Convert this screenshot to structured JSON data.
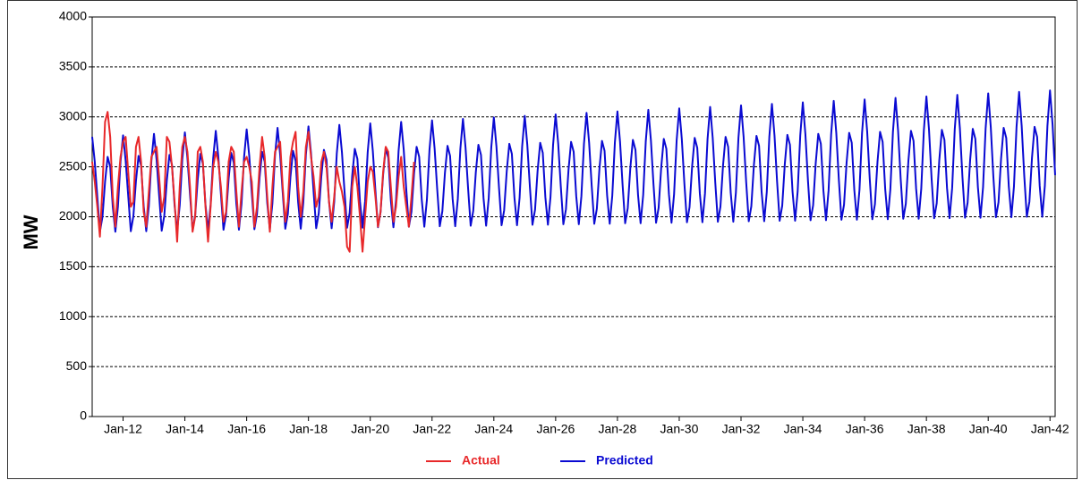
{
  "chart_data": {
    "type": "line",
    "ylabel": "MW",
    "ylim": [
      0,
      4000
    ],
    "yticks": [
      0,
      500,
      1000,
      1500,
      2000,
      2500,
      3000,
      3500,
      4000
    ],
    "grid": true,
    "legend": "bottom",
    "xlim": [
      "Jan-11",
      "Mar-42"
    ],
    "xticks": [
      "Jan-12",
      "Jan-14",
      "Jan-16",
      "Jan-18",
      "Jan-20",
      "Jan-22",
      "Jan-24",
      "Jan-26",
      "Jan-28",
      "Jan-30",
      "Jan-32",
      "Jan-34",
      "Jan-36",
      "Jan-38",
      "Jan-40",
      "Jan-42"
    ],
    "x": [
      "Jan-11",
      "Feb-11",
      "Mar-11",
      "Apr-11",
      "May-11",
      "Jun-11",
      "Jul-11",
      "Aug-11",
      "Sep-11",
      "Oct-11",
      "Nov-11",
      "Dec-11",
      "Jan-12",
      "Feb-12",
      "Mar-12",
      "Apr-12",
      "May-12",
      "Jun-12",
      "Jul-12",
      "Aug-12",
      "Sep-12",
      "Oct-12",
      "Nov-12",
      "Dec-12",
      "Jan-13",
      "Feb-13",
      "Mar-13",
      "Apr-13",
      "May-13",
      "Jun-13",
      "Jul-13",
      "Aug-13",
      "Sep-13",
      "Oct-13",
      "Nov-13",
      "Dec-13",
      "Jan-14",
      "Feb-14",
      "Mar-14",
      "Apr-14",
      "May-14",
      "Jun-14",
      "Jul-14",
      "Aug-14",
      "Sep-14",
      "Oct-14",
      "Nov-14",
      "Dec-14",
      "Jan-15",
      "Feb-15",
      "Mar-15",
      "Apr-15",
      "May-15",
      "Jun-15",
      "Jul-15",
      "Aug-15",
      "Sep-15",
      "Oct-15",
      "Nov-15",
      "Dec-15",
      "Jan-16",
      "Feb-16",
      "Mar-16",
      "Apr-16",
      "May-16",
      "Jun-16",
      "Jul-16",
      "Aug-16",
      "Sep-16",
      "Oct-16",
      "Nov-16",
      "Dec-16",
      "Jan-17",
      "Feb-17",
      "Mar-17",
      "Apr-17",
      "May-17",
      "Jun-17",
      "Jul-17",
      "Aug-17",
      "Sep-17",
      "Oct-17",
      "Nov-17",
      "Dec-17",
      "Jan-18",
      "Feb-18",
      "Mar-18",
      "Apr-18",
      "May-18",
      "Jun-18",
      "Jul-18",
      "Aug-18",
      "Sep-18",
      "Oct-18",
      "Nov-18",
      "Dec-18",
      "Jan-19",
      "Feb-19",
      "Mar-19",
      "Apr-19",
      "May-19",
      "Jun-19",
      "Jul-19",
      "Aug-19",
      "Sep-19",
      "Oct-19",
      "Nov-19",
      "Dec-19",
      "Jan-20",
      "Feb-20",
      "Mar-20",
      "Apr-20",
      "May-20",
      "Jun-20",
      "Jul-20",
      "Aug-20",
      "Sep-20",
      "Oct-20",
      "Nov-20",
      "Dec-20",
      "Jan-21",
      "Feb-21",
      "Mar-21",
      "Apr-21",
      "May-21",
      "Jun-21",
      "Jul-21",
      "Aug-21",
      "Sep-21",
      "Oct-21",
      "Nov-21",
      "Dec-21",
      "Jan-22",
      "Feb-22",
      "Mar-22",
      "Apr-22",
      "May-22",
      "Jun-22",
      "Jul-22",
      "Aug-22",
      "Sep-22",
      "Oct-22",
      "Nov-22",
      "Dec-22",
      "Jan-23",
      "Feb-23",
      "Mar-23",
      "Apr-23",
      "May-23",
      "Jun-23",
      "Jul-23",
      "Aug-23",
      "Sep-23",
      "Oct-23",
      "Nov-23",
      "Dec-23",
      "Jan-24",
      "Feb-24",
      "Mar-24",
      "Apr-24",
      "May-24",
      "Jun-24",
      "Jul-24",
      "Aug-24",
      "Sep-24",
      "Oct-24",
      "Nov-24",
      "Dec-24",
      "Jan-25",
      "Feb-25",
      "Mar-25",
      "Apr-25",
      "May-25",
      "Jun-25",
      "Jul-25",
      "Aug-25",
      "Sep-25",
      "Oct-25",
      "Nov-25",
      "Dec-25",
      "Jan-26",
      "Feb-26",
      "Mar-26",
      "Apr-26",
      "May-26",
      "Jun-26",
      "Jul-26",
      "Aug-26",
      "Sep-26",
      "Oct-26",
      "Nov-26",
      "Dec-26",
      "Jan-27",
      "Feb-27",
      "Mar-27",
      "Apr-27",
      "May-27",
      "Jun-27",
      "Jul-27",
      "Aug-27",
      "Sep-27",
      "Oct-27",
      "Nov-27",
      "Dec-27",
      "Jan-28",
      "Feb-28",
      "Mar-28",
      "Apr-28",
      "May-28",
      "Jun-28",
      "Jul-28",
      "Aug-28",
      "Sep-28",
      "Oct-28",
      "Nov-28",
      "Dec-28",
      "Jan-29",
      "Feb-29",
      "Mar-29",
      "Apr-29",
      "May-29",
      "Jun-29",
      "Jul-29",
      "Aug-29",
      "Sep-29",
      "Oct-29",
      "Nov-29",
      "Dec-29",
      "Jan-30",
      "Feb-30",
      "Mar-30",
      "Apr-30",
      "May-30",
      "Jun-30",
      "Jul-30",
      "Aug-30",
      "Sep-30",
      "Oct-30",
      "Nov-30",
      "Dec-30",
      "Jan-31",
      "Feb-31",
      "Mar-31",
      "Apr-31",
      "May-31",
      "Jun-31",
      "Jul-31",
      "Aug-31",
      "Sep-31",
      "Oct-31",
      "Nov-31",
      "Dec-31",
      "Jan-32",
      "Feb-32",
      "Mar-32",
      "Apr-32",
      "May-32",
      "Jun-32",
      "Jul-32",
      "Aug-32",
      "Sep-32",
      "Oct-32",
      "Nov-32",
      "Dec-32",
      "Jan-33",
      "Feb-33",
      "Mar-33",
      "Apr-33",
      "May-33",
      "Jun-33",
      "Jul-33",
      "Aug-33",
      "Sep-33",
      "Oct-33",
      "Nov-33",
      "Dec-33",
      "Jan-34",
      "Feb-34",
      "Mar-34",
      "Apr-34",
      "May-34",
      "Jun-34",
      "Jul-34",
      "Aug-34",
      "Sep-34",
      "Oct-34",
      "Nov-34",
      "Dec-34",
      "Jan-35",
      "Feb-35",
      "Mar-35",
      "Apr-35",
      "May-35",
      "Jun-35",
      "Jul-35",
      "Aug-35",
      "Sep-35",
      "Oct-35",
      "Nov-35",
      "Dec-35",
      "Jan-36",
      "Feb-36",
      "Mar-36",
      "Apr-36",
      "May-36",
      "Jun-36",
      "Jul-36",
      "Aug-36",
      "Sep-36",
      "Oct-36",
      "Nov-36",
      "Dec-36",
      "Jan-37",
      "Feb-37",
      "Mar-37",
      "Apr-37",
      "May-37",
      "Jun-37",
      "Jul-37",
      "Aug-37",
      "Sep-37",
      "Oct-37",
      "Nov-37",
      "Dec-37",
      "Jan-38",
      "Feb-38",
      "Mar-38",
      "Apr-38",
      "May-38",
      "Jun-38",
      "Jul-38",
      "Aug-38",
      "Sep-38",
      "Oct-38",
      "Nov-38",
      "Dec-38",
      "Jan-39",
      "Feb-39",
      "Mar-39",
      "Apr-39",
      "May-39",
      "Jun-39",
      "Jul-39",
      "Aug-39",
      "Sep-39",
      "Oct-39",
      "Nov-39",
      "Dec-39",
      "Jan-40",
      "Feb-40",
      "Mar-40",
      "Apr-40",
      "May-40",
      "Jun-40",
      "Jul-40",
      "Aug-40",
      "Sep-40",
      "Oct-40",
      "Nov-40",
      "Dec-40",
      "Jan-41",
      "Feb-41",
      "Mar-41",
      "Apr-41",
      "May-41",
      "Jun-41",
      "Jul-41",
      "Aug-41",
      "Sep-41",
      "Oct-41",
      "Nov-41",
      "Dec-41",
      "Jan-42",
      "Feb-42",
      "Mar-42"
    ],
    "series": [
      {
        "name": "Actual",
        "color": "#e8282a",
        "values": [
          2550,
          2350,
          2100,
          1800,
          2300,
          2950,
          3050,
          2800,
          2200,
          1900,
          2300,
          2600,
          2750,
          2800,
          2450,
          2100,
          2150,
          2700,
          2800,
          2550,
          2050,
          1900,
          2250,
          2600,
          2650,
          2700,
          2400,
          2050,
          2200,
          2800,
          2750,
          2500,
          2150,
          1750,
          2300,
          2700,
          2800,
          2650,
          2300,
          1850,
          2000,
          2650,
          2700,
          2550,
          2100,
          1750,
          2100,
          2500,
          2650,
          2550,
          2300,
          1950,
          2050,
          2550,
          2700,
          2650,
          2250,
          1900,
          2250,
          2550,
          2600,
          2500,
          2350,
          1900,
          2100,
          2500,
          2800,
          2600,
          2200,
          1850,
          2300,
          2650,
          2700,
          2750,
          2300,
          1950,
          2150,
          2600,
          2750,
          2850,
          2300,
          2000,
          2250,
          2700,
          2850,
          2600,
          2400,
          2100,
          2200,
          2550,
          2650,
          2500,
          2150,
          1950,
          2200,
          2500,
          2350,
          2250,
          2100,
          1700,
          1650,
          2300,
          2500,
          2300,
          2000,
          1650,
          2000,
          2350,
          2500,
          2450,
          2200,
          1900,
          2050,
          2450,
          2700,
          2650,
          2300,
          1950,
          2100,
          2400,
          2600,
          2300,
          2100,
          1900,
          2200,
          2550,
          null,
          null,
          null,
          null,
          null,
          null,
          null,
          null,
          null,
          null,
          null,
          null,
          null,
          null,
          null,
          null,
          null,
          null,
          null,
          null,
          null,
          null,
          null,
          null,
          null,
          null,
          null,
          null,
          null,
          null,
          null,
          null,
          null,
          null,
          null,
          null,
          null,
          null,
          null,
          null,
          null,
          null,
          null,
          null,
          null,
          null,
          null,
          null,
          null,
          null,
          null,
          null,
          null,
          null,
          null,
          null,
          null,
          null,
          null,
          null,
          null,
          null,
          null,
          null,
          null,
          null,
          null,
          null,
          null,
          null,
          null,
          null,
          null,
          null,
          null,
          null,
          null,
          null,
          null,
          null,
          null,
          null,
          null,
          null,
          null,
          null,
          null,
          null,
          null,
          null,
          null,
          null,
          null,
          null,
          null,
          null,
          null,
          null,
          null,
          null,
          null,
          null,
          null,
          null,
          null,
          null,
          null,
          null,
          null,
          null,
          null,
          null,
          null,
          null,
          null,
          null,
          null,
          null,
          null,
          null,
          null,
          null,
          null,
          null,
          null,
          null,
          null,
          null,
          null,
          null,
          null,
          null,
          null,
          null,
          null,
          null,
          null,
          null,
          null,
          null,
          null,
          null,
          null,
          null,
          null,
          null,
          null,
          null,
          null,
          null,
          null,
          null,
          null,
          null,
          null,
          null,
          null,
          null,
          null,
          null,
          null,
          null,
          null,
          null,
          null,
          null,
          null,
          null,
          null,
          null,
          null,
          null,
          null,
          null,
          null,
          null,
          null,
          null,
          null,
          null,
          null,
          null,
          null,
          null,
          null,
          null,
          null,
          null,
          null,
          null,
          null,
          null,
          null,
          null,
          null,
          null,
          null,
          null,
          null,
          null,
          null,
          null,
          null,
          null,
          null,
          null,
          null,
          null,
          null,
          null,
          null,
          null,
          null,
          null,
          null,
          null,
          null,
          null,
          null,
          null,
          null,
          null,
          null,
          null,
          null,
          null,
          null,
          null,
          null,
          null,
          null,
          null,
          null,
          null,
          null,
          null,
          null,
          null,
          null,
          null,
          null,
          null,
          null,
          null,
          null,
          null,
          null,
          null,
          null
        ]
      },
      {
        "name": "Predicted",
        "color": "#0a0ad2",
        "values": [
          2800,
          2550,
          2200,
          1850,
          2000,
          2350,
          2600,
          2500,
          2100,
          1850,
          2100,
          2550,
          2815,
          2562,
          2207,
          1855,
          2005,
          2358,
          2610,
          2510,
          2107,
          1855,
          2107,
          2562,
          2830,
          2574,
          2214,
          1860,
          2010,
          2366,
          2620,
          2520,
          2114,
          1860,
          2114,
          2574,
          2845,
          2586,
          2221,
          1865,
          2015,
          2374,
          2630,
          2530,
          2121,
          1865,
          2121,
          2586,
          2860,
          2598,
          2228,
          1870,
          2020,
          2382,
          2640,
          2540,
          2128,
          1870,
          2128,
          2598,
          2875,
          2610,
          2235,
          1875,
          2025,
          2390,
          2650,
          2550,
          2135,
          1875,
          2135,
          2610,
          2890,
          2622,
          2242,
          1880,
          2030,
          2398,
          2660,
          2560,
          2142,
          1880,
          2142,
          2622,
          2905,
          2634,
          2249,
          1885,
          2035,
          2406,
          2670,
          2570,
          2149,
          1885,
          2149,
          2634,
          2920,
          2646,
          2256,
          1890,
          2040,
          2414,
          2680,
          2580,
          2156,
          1890,
          2156,
          2646,
          2935,
          2658,
          2263,
          1895,
          2045,
          2422,
          2690,
          2590,
          2163,
          1895,
          2163,
          2658,
          2950,
          2670,
          2270,
          1900,
          2050,
          2430,
          2700,
          2600,
          2170,
          1900,
          2170,
          2670,
          2965,
          2682,
          2277,
          1905,
          2055,
          2438,
          2710,
          2610,
          2177,
          1905,
          2177,
          2682,
          2980,
          2694,
          2284,
          1910,
          2060,
          2446,
          2720,
          2620,
          2184,
          1910,
          2184,
          2694,
          2995,
          2706,
          2291,
          1915,
          2065,
          2454,
          2730,
          2630,
          2191,
          1915,
          2191,
          2706,
          3010,
          2718,
          2298,
          1920,
          2070,
          2462,
          2740,
          2640,
          2198,
          1920,
          2198,
          2718,
          3025,
          2730,
          2305,
          1925,
          2075,
          2470,
          2750,
          2650,
          2205,
          1925,
          2205,
          2730,
          3040,
          2742,
          2312,
          1930,
          2080,
          2478,
          2760,
          2660,
          2212,
          1930,
          2212,
          2742,
          3055,
          2754,
          2319,
          1935,
          2085,
          2486,
          2770,
          2670,
          2219,
          1935,
          2219,
          2754,
          3070,
          2766,
          2326,
          1940,
          2090,
          2494,
          2780,
          2680,
          2226,
          1940,
          2226,
          2766,
          3085,
          2778,
          2333,
          1945,
          2095,
          2502,
          2790,
          2690,
          2233,
          1945,
          2233,
          2778,
          3100,
          2790,
          2340,
          1950,
          2100,
          2510,
          2800,
          2700,
          2240,
          1950,
          2240,
          2790,
          3115,
          2802,
          2347,
          1955,
          2105,
          2518,
          2810,
          2710,
          2247,
          1955,
          2247,
          2802,
          3130,
          2814,
          2354,
          1960,
          2110,
          2526,
          2820,
          2720,
          2254,
          1960,
          2254,
          2814,
          3145,
          2826,
          2361,
          1965,
          2115,
          2534,
          2830,
          2730,
          2261,
          1965,
          2261,
          2826,
          3160,
          2838,
          2368,
          1970,
          2120,
          2542,
          2840,
          2740,
          2268,
          1970,
          2268,
          2838,
          3175,
          2850,
          2375,
          1975,
          2125,
          2550,
          2850,
          2750,
          2275,
          1975,
          2275,
          2850,
          3190,
          2862,
          2382,
          1980,
          2130,
          2558,
          2860,
          2760,
          2282,
          1980,
          2282,
          2862,
          3205,
          2874,
          2389,
          1985,
          2135,
          2566,
          2870,
          2770,
          2289,
          1985,
          2289,
          2874,
          3220,
          2886,
          2396,
          1990,
          2140,
          2574,
          2880,
          2780,
          2296,
          1990,
          2296,
          2886,
          3235,
          2898,
          2403,
          1995,
          2145,
          2582,
          2890,
          2790,
          2303,
          1995,
          2303,
          2898,
          3250,
          2910,
          2410,
          2000,
          2150,
          2590,
          2900,
          2800,
          2310,
          2000,
          2310,
          2910,
          3265,
          2922,
          2417
        ]
      }
    ]
  }
}
